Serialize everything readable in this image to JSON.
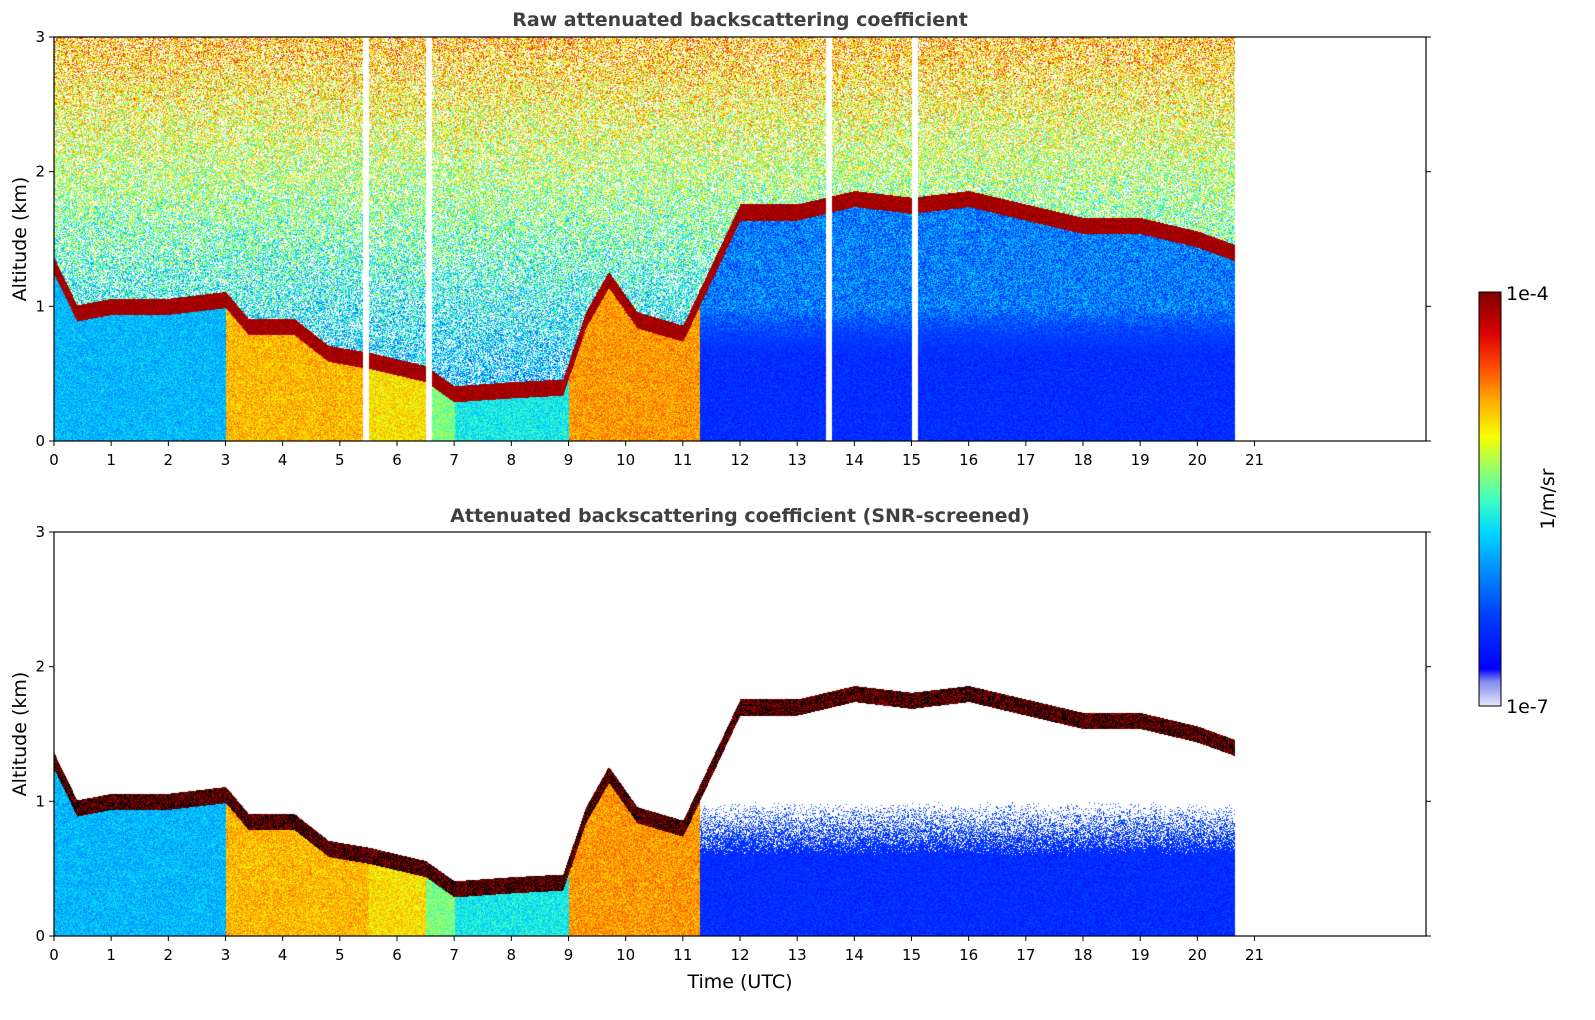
{
  "chart_data": [
    {
      "type": "heatmap",
      "title": "Raw attenuated backscattering coefficient",
      "xlabel": "",
      "ylabel": "Altitude (km)",
      "xlim": [
        0,
        24
      ],
      "ylim": [
        0,
        3
      ],
      "xticks": [
        "0",
        "1",
        "2",
        "3",
        "4",
        "5",
        "6",
        "7",
        "8",
        "9",
        "10",
        "11",
        "12",
        "13",
        "14",
        "15",
        "16",
        "17",
        "18",
        "19",
        "20",
        "21"
      ],
      "yticks": [
        "0",
        "1",
        "2",
        "3"
      ],
      "data_end_time": 20.65,
      "layer_top_altitude": [
        [
          0,
          1.3
        ],
        [
          0.4,
          0.95
        ],
        [
          1,
          1.0
        ],
        [
          2,
          1.0
        ],
        [
          3,
          1.05
        ],
        [
          3.4,
          0.85
        ],
        [
          4.2,
          0.85
        ],
        [
          4.8,
          0.65
        ],
        [
          5.5,
          0.6
        ],
        [
          6.5,
          0.5
        ],
        [
          7,
          0.35
        ],
        [
          8,
          0.38
        ],
        [
          8.9,
          0.4
        ],
        [
          9.3,
          0.9
        ],
        [
          9.7,
          1.2
        ],
        [
          10.2,
          0.9
        ],
        [
          11,
          0.8
        ],
        [
          12,
          1.7
        ],
        [
          13,
          1.7
        ],
        [
          14,
          1.8
        ],
        [
          15,
          1.75
        ],
        [
          16,
          1.8
        ],
        [
          17,
          1.7
        ],
        [
          18,
          1.6
        ],
        [
          19,
          1.6
        ],
        [
          20,
          1.5
        ],
        [
          20.65,
          1.4
        ]
      ],
      "gaps": [
        5.45,
        6.55,
        13.55,
        15.05
      ]
    },
    {
      "type": "heatmap",
      "title": "Attenuated backscattering coefficient (SNR-screened)",
      "xlabel": "Time (UTC)",
      "ylabel": "Altitude (km)",
      "xlim": [
        0,
        24
      ],
      "ylim": [
        0,
        3
      ],
      "xticks": [
        "0",
        "1",
        "2",
        "3",
        "4",
        "5",
        "6",
        "7",
        "8",
        "9",
        "10",
        "11",
        "12",
        "13",
        "14",
        "15",
        "16",
        "17",
        "18",
        "19",
        "20",
        "21"
      ],
      "yticks": [
        "0",
        "1",
        "2",
        "3"
      ],
      "data_end_time": 20.65,
      "screened": true
    }
  ],
  "colorbar": {
    "label": "1/m/sr",
    "max_label": "1e-4",
    "min_label": "1e-7",
    "colors": [
      "#dde0f8",
      "#b4b8f2",
      "#8a90ee",
      "#0000ff",
      "#0046ff",
      "#0090ff",
      "#00d2ff",
      "#30ffd0",
      "#90ff70",
      "#f0ff00",
      "#ffb000",
      "#ff5000",
      "#e00000",
      "#800000"
    ]
  }
}
